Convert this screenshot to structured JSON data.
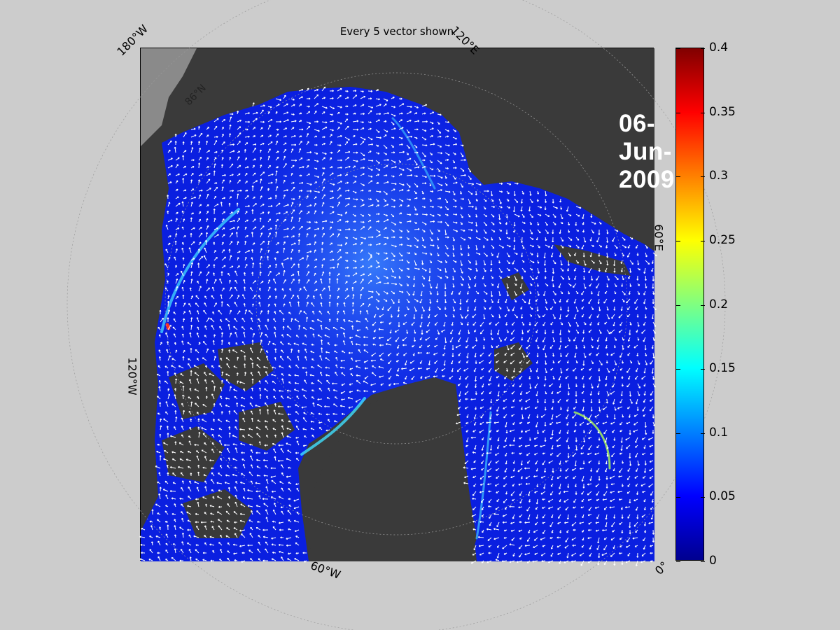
{
  "figure": {
    "title": "Every 5 vector shown",
    "date": "06-Jun-2009"
  },
  "map": {
    "longitude_labels": [
      "180°W",
      "120°E",
      "60°E",
      "0°",
      "60°W",
      "120°W"
    ],
    "latitude_labels": [
      "86°N"
    ],
    "colors": {
      "land": "#3a3a3a",
      "outside_region": "#8a8a8a",
      "coast_ice": "#9a9a9a",
      "water_low": "#0a1fe0",
      "water_mid": "#2060ff",
      "vectors": "#ffffff"
    }
  },
  "colorbar": {
    "min": 0,
    "max": 0.4,
    "ticks": [
      "0",
      "0.05",
      "0.1",
      "0.15",
      "0.2",
      "0.25",
      "0.3",
      "0.35",
      "0.4"
    ],
    "colormap": "jet"
  }
}
